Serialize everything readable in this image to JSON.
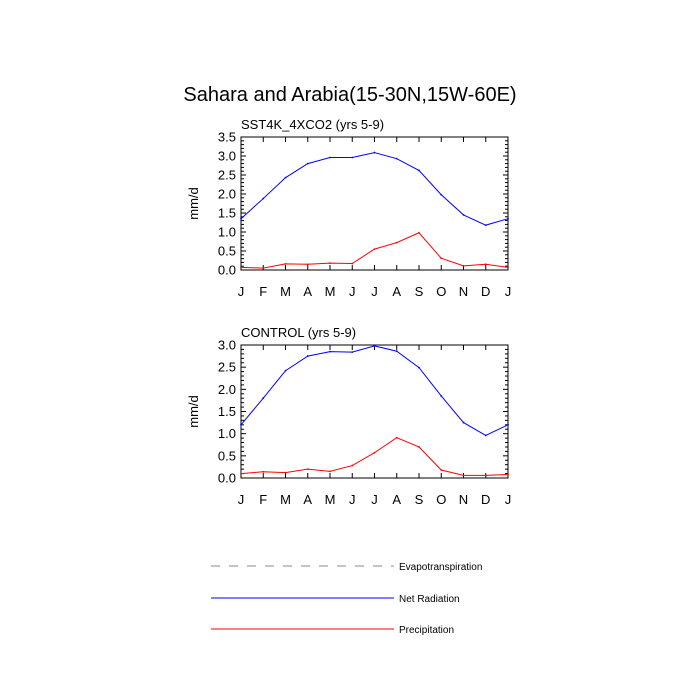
{
  "title": "Sahara and Arabia(15-30N,15W-60E)",
  "chart_data": [
    {
      "type": "line",
      "title": "SST4K_4XCO2 (yrs 5-9)",
      "xlabel": "",
      "ylabel": "mm/d",
      "categories": [
        "J",
        "F",
        "M",
        "A",
        "M",
        "J",
        "J",
        "A",
        "S",
        "O",
        "N",
        "D",
        "J"
      ],
      "ylim": [
        0,
        3.5
      ],
      "yticks": [
        "0.0",
        "0.5",
        "1.0",
        "1.5",
        "2.0",
        "2.5",
        "3.0",
        "3.5"
      ],
      "series": [
        {
          "name": "Net Radiation",
          "color": "#0000ff",
          "values": [
            1.35,
            1.88,
            2.43,
            2.8,
            2.96,
            2.96,
            3.09,
            2.93,
            2.62,
            1.98,
            1.45,
            1.18,
            1.35
          ]
        },
        {
          "name": "Precipitation",
          "color": "#ff0000",
          "values": [
            0.07,
            0.05,
            0.16,
            0.15,
            0.18,
            0.17,
            0.55,
            0.72,
            0.98,
            0.31,
            0.11,
            0.15,
            0.07
          ]
        }
      ]
    },
    {
      "type": "line",
      "title": "CONTROL (yrs 5-9)",
      "xlabel": "",
      "ylabel": "mm/d",
      "categories": [
        "J",
        "F",
        "M",
        "A",
        "M",
        "J",
        "J",
        "A",
        "S",
        "O",
        "N",
        "D",
        "J"
      ],
      "ylim": [
        0,
        3.0
      ],
      "yticks": [
        "0.0",
        "0.5",
        "1.0",
        "1.5",
        "2.0",
        "2.5",
        "3.0"
      ],
      "series": [
        {
          "name": "Net Radiation",
          "color": "#0000ff",
          "values": [
            1.2,
            1.8,
            2.42,
            2.75,
            2.85,
            2.84,
            2.98,
            2.86,
            2.49,
            1.85,
            1.25,
            0.96,
            1.2
          ]
        },
        {
          "name": "Precipitation",
          "color": "#ff0000",
          "values": [
            0.1,
            0.14,
            0.12,
            0.2,
            0.15,
            0.28,
            0.57,
            0.91,
            0.7,
            0.18,
            0.06,
            0.06,
            0.08
          ]
        }
      ]
    }
  ],
  "legend": [
    {
      "label": "Evapotranspiration",
      "color": "#888888",
      "style": "dashed"
    },
    {
      "label": "Net Radiation",
      "color": "#0000ff",
      "style": "solid"
    },
    {
      "label": "Precipitation",
      "color": "#ff0000",
      "style": "solid"
    }
  ]
}
